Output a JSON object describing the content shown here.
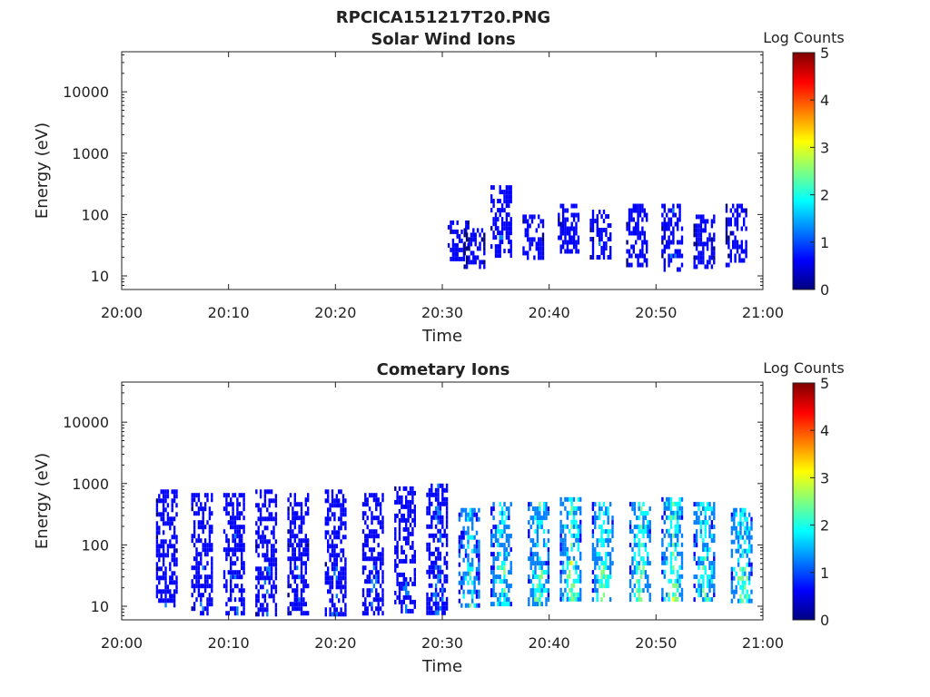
{
  "figure_title": "RPCICA151217T20.PNG",
  "colormap": [
    "#00007f",
    "#0000ff",
    "#007fff",
    "#00ffff",
    "#7fff7f",
    "#ffff00",
    "#ff7f00",
    "#ff0000",
    "#7f0000"
  ],
  "chart_data": [
    {
      "type": "heatmap",
      "title": "Solar Wind Ions",
      "xlabel": "Time",
      "ylabel": "Energy (eV)",
      "x_ticks": [
        "20:00",
        "20:10",
        "20:20",
        "20:30",
        "20:40",
        "20:50",
        "21:00"
      ],
      "y_ticks": [
        "10",
        "100",
        "1000",
        "10000"
      ],
      "y_scale": "log",
      "ylim": [
        6,
        45000
      ],
      "xlim_minutes": [
        0,
        60
      ],
      "colorbar": {
        "label": "Log Counts",
        "ticks": [
          "0",
          "1",
          "2",
          "3",
          "4",
          "5"
        ],
        "range": [
          0,
          5
        ]
      },
      "bursts": [
        {
          "t": 31.5,
          "emin": 20,
          "emax": 80,
          "level": 0.6
        },
        {
          "t": 33.0,
          "emin": 15,
          "emax": 60,
          "level": 0.5
        },
        {
          "t": 35.5,
          "emin": 20,
          "emax": 300,
          "level": 0.8
        },
        {
          "t": 38.5,
          "emin": 20,
          "emax": 100,
          "level": 0.6
        },
        {
          "t": 41.8,
          "emin": 25,
          "emax": 150,
          "level": 0.7
        },
        {
          "t": 44.8,
          "emin": 20,
          "emax": 120,
          "level": 0.7
        },
        {
          "t": 48.2,
          "emin": 15,
          "emax": 150,
          "level": 0.7
        },
        {
          "t": 51.5,
          "emin": 12,
          "emax": 150,
          "level": 0.8
        },
        {
          "t": 54.5,
          "emin": 15,
          "emax": 100,
          "level": 0.6
        },
        {
          "t": 57.5,
          "emin": 15,
          "emax": 150,
          "level": 0.6
        }
      ]
    },
    {
      "type": "heatmap",
      "title": "Cometary Ions",
      "xlabel": "Time",
      "ylabel": "Energy (eV)",
      "x_ticks": [
        "20:00",
        "20:10",
        "20:20",
        "20:30",
        "20:40",
        "20:50",
        "21:00"
      ],
      "y_ticks": [
        "10",
        "100",
        "1000",
        "10000"
      ],
      "y_scale": "log",
      "ylim": [
        6,
        45000
      ],
      "xlim_minutes": [
        0,
        60
      ],
      "colorbar": {
        "label": "Log Counts",
        "ticks": [
          "0",
          "1",
          "2",
          "3",
          "4",
          "5"
        ],
        "range": [
          0,
          5
        ]
      },
      "bursts": [
        {
          "t": 4.2,
          "emin": 10,
          "emax": 800,
          "level": 0.7
        },
        {
          "t": 7.5,
          "emin": 8,
          "emax": 700,
          "level": 0.7
        },
        {
          "t": 10.5,
          "emin": 8,
          "emax": 700,
          "level": 0.8
        },
        {
          "t": 13.5,
          "emin": 8,
          "emax": 800,
          "level": 0.8
        },
        {
          "t": 16.5,
          "emin": 8,
          "emax": 700,
          "level": 0.7
        },
        {
          "t": 20.0,
          "emin": 8,
          "emax": 800,
          "level": 0.8
        },
        {
          "t": 23.5,
          "emin": 8,
          "emax": 700,
          "level": 0.8
        },
        {
          "t": 26.5,
          "emin": 8,
          "emax": 900,
          "level": 0.8
        },
        {
          "t": 29.5,
          "emin": 8,
          "emax": 1000,
          "level": 0.9
        },
        {
          "t": 32.5,
          "emin": 10,
          "emax": 400,
          "level": 1.6
        },
        {
          "t": 35.5,
          "emin": 10,
          "emax": 500,
          "level": 1.8
        },
        {
          "t": 39.0,
          "emin": 10,
          "emax": 500,
          "level": 1.9
        },
        {
          "t": 42.0,
          "emin": 12,
          "emax": 600,
          "level": 2.1
        },
        {
          "t": 45.0,
          "emin": 12,
          "emax": 500,
          "level": 2.0
        },
        {
          "t": 48.5,
          "emin": 12,
          "emax": 500,
          "level": 2.0
        },
        {
          "t": 51.5,
          "emin": 12,
          "emax": 600,
          "level": 2.1
        },
        {
          "t": 54.5,
          "emin": 12,
          "emax": 500,
          "level": 1.9
        },
        {
          "t": 58.0,
          "emin": 12,
          "emax": 400,
          "level": 2.0
        }
      ]
    }
  ]
}
